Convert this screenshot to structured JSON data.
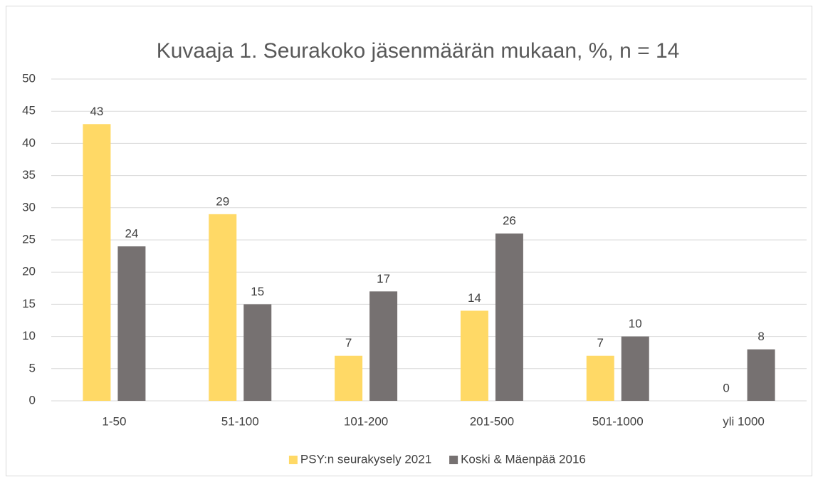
{
  "chart_data": {
    "type": "bar",
    "title": "Kuvaaja 1. Seurakoko jäsenmäärän mukaan, %, n = 14",
    "categories": [
      "1-50",
      "51-100",
      "101-200",
      "201-500",
      "501-1000",
      "yli 1000"
    ],
    "series": [
      {
        "name": "PSY:n seurakysely 2021",
        "color": "#ffd966",
        "values": [
          43,
          29,
          7,
          14,
          7,
          0
        ]
      },
      {
        "name": "Koski & Mäenpää 2016",
        "color": "#767171",
        "values": [
          24,
          15,
          17,
          26,
          10,
          8
        ]
      }
    ],
    "ylim": [
      0,
      50
    ],
    "yticks": [
      0,
      5,
      10,
      15,
      20,
      25,
      30,
      35,
      40,
      45,
      50
    ],
    "grid": true,
    "legend": "bottom"
  }
}
